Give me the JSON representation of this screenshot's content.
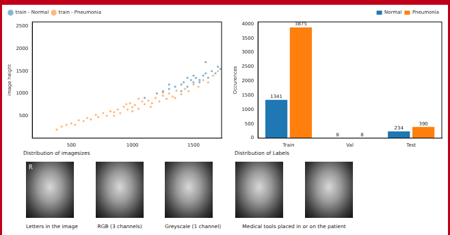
{
  "chart_data": [
    {
      "type": "scatter",
      "y_label": "image height",
      "xlim": [
        180,
        1730
      ],
      "xticks": [
        500,
        1000,
        1500
      ],
      "ylim": [
        0,
        2600
      ],
      "yticks": [
        500,
        1000,
        1500,
        2000,
        2500
      ],
      "grid": false,
      "legend": "upper left",
      "series": [
        {
          "name": "train - Normal",
          "color": "#1f77b4",
          "marker": "circle",
          "x": [
            1100,
            1200,
            1250,
            1300,
            1350,
            1400,
            1420,
            1450,
            1480,
            1500,
            1520,
            1550,
            1580,
            1600,
            1620,
            1650,
            1680,
            1700,
            1720,
            1400,
            1500,
            1600,
            1300,
            1450,
            1550
          ],
          "values": [
            900,
            1000,
            1050,
            1100,
            1150,
            1200,
            1250,
            1150,
            1300,
            1250,
            1350,
            1300,
            1400,
            1450,
            1350,
            1500,
            1450,
            1600,
            1550,
            1050,
            1400,
            1700,
            1200,
            1350,
            1250
          ]
        },
        {
          "name": "train - Pneumonia",
          "color": "#ff7f0e",
          "marker": "circle",
          "x": [
            380,
            420,
            460,
            500,
            530,
            560,
            600,
            630,
            660,
            700,
            720,
            760,
            790,
            820,
            850,
            880,
            900,
            930,
            960,
            980,
            1000,
            1020,
            1050,
            1080,
            1100,
            1130,
            1160,
            1190,
            1220,
            1250,
            1280,
            1300,
            1330,
            1360,
            1400,
            1430,
            1460,
            1500,
            1540,
            1580,
            1620,
            1660,
            1700,
            850,
            950,
            1050,
            1150,
            1250,
            1350,
            1000
          ],
          "values": [
            190,
            260,
            300,
            330,
            300,
            400,
            380,
            450,
            420,
            520,
            470,
            560,
            500,
            600,
            580,
            640,
            560,
            700,
            640,
            780,
            690,
            740,
            660,
            820,
            760,
            840,
            780,
            900,
            820,
            950,
            880,
            1000,
            930,
            1060,
            980,
            1100,
            1050,
            1200,
            1150,
            1300,
            1250,
            1400,
            1500,
            500,
            760,
            880,
            700,
            1020,
            900,
            600
          ]
        }
      ]
    },
    {
      "type": "bar",
      "y_label": "Occurences",
      "categories": [
        "Train",
        "Val",
        "Test"
      ],
      "ylim": [
        0,
        4069
      ],
      "yticks": [
        0,
        500,
        1000,
        1500,
        2000,
        2500,
        3000,
        3500,
        4000
      ],
      "grid": false,
      "legend": "upper right",
      "data_labels": true,
      "series": [
        {
          "name": "Normal",
          "color": "#1f77b4",
          "values": [
            1341,
            8,
            234
          ]
        },
        {
          "name": "Pneumonia",
          "color": "#ff7f0e",
          "values": [
            3875,
            8,
            390
          ]
        }
      ]
    }
  ],
  "chart_captions": [
    "Distribution of imagesizes",
    "Distribution of Labels"
  ],
  "image_groups": [
    {
      "caption": "Letters in the image",
      "marks": [
        "R"
      ]
    },
    {
      "caption": "RGB (3 channels)"
    },
    {
      "caption": "Greyscale (1 channel)"
    },
    {
      "caption": "Medical tools placed in or on the patient"
    }
  ]
}
